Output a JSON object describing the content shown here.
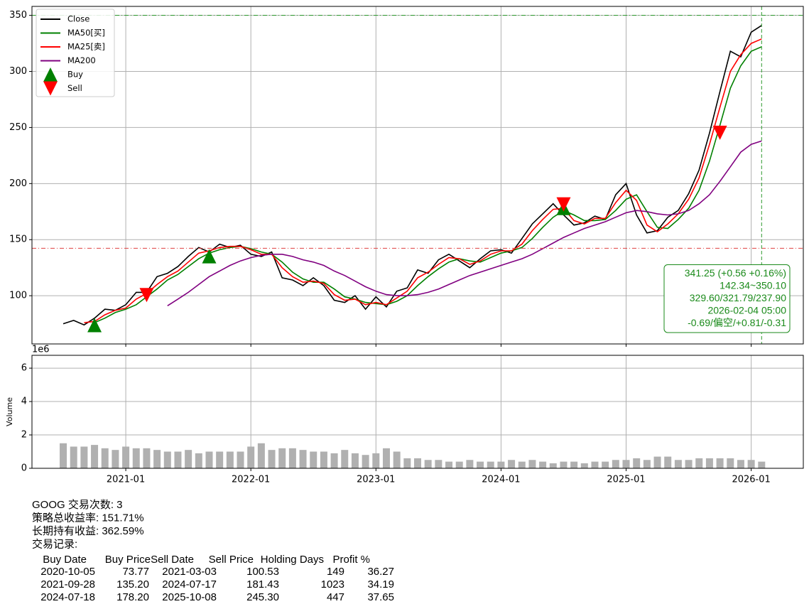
{
  "chart_data": [
    {
      "type": "line",
      "legend": "upper left",
      "grid": true,
      "x": [
        "2020-07",
        "2020-08",
        "2020-09",
        "2020-10",
        "2020-11",
        "2020-12",
        "2021-01",
        "2021-02",
        "2021-03",
        "2021-04",
        "2021-05",
        "2021-06",
        "2021-07",
        "2021-08",
        "2021-09",
        "2021-10",
        "2021-11",
        "2021-12",
        "2022-01",
        "2022-02",
        "2022-03",
        "2022-04",
        "2022-05",
        "2022-06",
        "2022-07",
        "2022-08",
        "2022-09",
        "2022-10",
        "2022-11",
        "2022-12",
        "2023-01",
        "2023-02",
        "2023-03",
        "2023-04",
        "2023-05",
        "2023-06",
        "2023-07",
        "2023-08",
        "2023-09",
        "2023-10",
        "2023-11",
        "2023-12",
        "2024-01",
        "2024-02",
        "2024-03",
        "2024-04",
        "2024-05",
        "2024-06",
        "2024-07",
        "2024-08",
        "2024-09",
        "2024-10",
        "2024-11",
        "2024-12",
        "2025-01",
        "2025-02",
        "2025-03",
        "2025-04",
        "2025-05",
        "2025-06",
        "2025-07",
        "2025-08",
        "2025-09",
        "2025-10",
        "2025-11",
        "2025-12",
        "2026-01",
        "2026-02"
      ],
      "series": [
        {
          "name": "Close",
          "color": "#000000",
          "values": [
            75,
            78,
            74,
            80,
            88,
            87,
            92,
            103,
            103,
            117,
            120,
            126,
            135,
            143,
            139,
            146,
            143,
            145,
            137,
            135,
            139,
            116,
            114,
            109,
            116,
            109,
            96,
            94,
            100,
            88,
            99,
            90,
            104,
            107,
            123,
            120,
            132,
            137,
            131,
            125,
            133,
            140,
            141,
            138,
            151,
            164,
            173,
            182,
            172,
            163,
            165,
            171,
            168,
            190,
            200,
            172,
            156,
            158,
            170,
            176,
            191,
            212,
            245,
            282,
            318,
            313,
            335,
            341
          ]
        },
        {
          "name": "MA50[买]",
          "color": "#008000",
          "values": [
            null,
            null,
            null,
            76,
            80,
            85,
            88,
            92,
            99,
            106,
            114,
            119,
            126,
            133,
            138,
            141,
            143,
            144,
            142,
            139,
            137,
            130,
            121,
            115,
            112,
            112,
            106,
            99,
            97,
            94,
            93,
            92,
            95,
            100,
            109,
            117,
            124,
            130,
            133,
            131,
            130,
            134,
            138,
            140,
            143,
            151,
            161,
            170,
            176,
            172,
            167,
            167,
            168,
            176,
            186,
            190,
            175,
            161,
            160,
            168,
            178,
            194,
            220,
            252,
            285,
            305,
            318,
            322
          ]
        },
        {
          "name": "MA25[卖]",
          "color": "#ff0000",
          "values": [
            null,
            null,
            76,
            77,
            83,
            87,
            89,
            97,
            102,
            110,
            117,
            122,
            130,
            138,
            140,
            143,
            144,
            144,
            141,
            137,
            137,
            125,
            117,
            112,
            113,
            111,
            101,
            96,
            97,
            92,
            94,
            92,
            98,
            104,
            116,
            121,
            128,
            134,
            133,
            128,
            131,
            137,
            140,
            140,
            146,
            158,
            168,
            177,
            178,
            167,
            164,
            169,
            169,
            183,
            194,
            185,
            163,
            157,
            164,
            173,
            186,
            205,
            235,
            268,
            300,
            315,
            325,
            329
          ]
        },
        {
          "name": "MA200",
          "color": "#800080",
          "values": [
            null,
            null,
            null,
            null,
            null,
            null,
            null,
            null,
            null,
            null,
            91,
            97,
            103,
            110,
            117,
            122,
            127,
            131,
            134,
            136,
            137,
            137,
            135,
            132,
            130,
            127,
            122,
            118,
            113,
            108,
            104,
            101,
            100,
            100,
            101,
            103,
            106,
            110,
            114,
            118,
            121,
            124,
            127,
            130,
            133,
            137,
            142,
            147,
            152,
            156,
            160,
            163,
            166,
            170,
            174,
            176,
            175,
            173,
            172,
            173,
            176,
            182,
            190,
            202,
            215,
            228,
            235,
            238
          ]
        }
      ],
      "markers": [
        {
          "name": "Buy",
          "color": "#008000",
          "shape": "up",
          "x": [
            "2020-10",
            "2021-09",
            "2024-07"
          ],
          "values": [
            73.77,
            135.2,
            178.2
          ]
        },
        {
          "name": "Sell",
          "color": "#ff0000",
          "shape": "down",
          "x": [
            "2021-03",
            "2024-07",
            "2025-10"
          ],
          "values": [
            100.53,
            181.43,
            245.3
          ]
        }
      ],
      "hlines": [
        {
          "value": 350.1,
          "color": "#2e9a2e"
        },
        {
          "value": 142.34,
          "color": "#e04040"
        }
      ],
      "vline": {
        "x": "2026-02",
        "color": "#2e9a2e"
      },
      "annotation": [
        "341.25 (+0.56 +0.16%)",
        "142.34~350.10",
        "329.60/321.79/237.90",
        "2026-02-04 05:00",
        "-0.69/偏空/+0.81/-0.31"
      ],
      "xlim": [
        "2020-04",
        "2026-06"
      ],
      "xticks": [
        "2021-01",
        "2022-01",
        "2023-01",
        "2024-01",
        "2025-01",
        "2026-01"
      ],
      "ylim": [
        57,
        358
      ],
      "yticks": [
        100,
        150,
        200,
        250,
        300,
        350
      ]
    },
    {
      "type": "bar",
      "grid": true,
      "y_label": "Volume",
      "offset_label": "1e6",
      "color": "#b0b0b0",
      "x": [
        "2020-07",
        "2020-08",
        "2020-09",
        "2020-10",
        "2020-11",
        "2020-12",
        "2021-01",
        "2021-02",
        "2021-03",
        "2021-04",
        "2021-05",
        "2021-06",
        "2021-07",
        "2021-08",
        "2021-09",
        "2021-10",
        "2021-11",
        "2021-12",
        "2022-01",
        "2022-02",
        "2022-03",
        "2022-04",
        "2022-05",
        "2022-06",
        "2022-07",
        "2022-08",
        "2022-09",
        "2022-10",
        "2022-11",
        "2022-12",
        "2023-01",
        "2023-02",
        "2023-03",
        "2023-04",
        "2023-05",
        "2023-06",
        "2023-07",
        "2023-08",
        "2023-09",
        "2023-10",
        "2023-11",
        "2023-12",
        "2024-01",
        "2024-02",
        "2024-03",
        "2024-04",
        "2024-05",
        "2024-06",
        "2024-07",
        "2024-08",
        "2024-09",
        "2024-10",
        "2024-11",
        "2024-12",
        "2025-01",
        "2025-02",
        "2025-03",
        "2025-04",
        "2025-05",
        "2025-06",
        "2025-07",
        "2025-08",
        "2025-09",
        "2025-10",
        "2025-11",
        "2025-12",
        "2026-01",
        "2026-02"
      ],
      "values": [
        1.5,
        1.3,
        1.3,
        1.4,
        1.2,
        1.1,
        1.3,
        1.2,
        1.2,
        1.1,
        1.0,
        1.0,
        1.1,
        0.9,
        1.0,
        1.0,
        1.0,
        1.0,
        1.3,
        1.5,
        1.1,
        1.2,
        1.2,
        1.1,
        1.0,
        1.0,
        0.9,
        1.1,
        0.9,
        0.8,
        0.9,
        1.2,
        1.0,
        0.6,
        0.6,
        0.5,
        0.5,
        0.4,
        0.4,
        0.5,
        0.4,
        0.4,
        0.4,
        0.5,
        0.4,
        0.5,
        0.4,
        0.3,
        0.4,
        0.4,
        0.3,
        0.4,
        0.4,
        0.5,
        0.5,
        0.6,
        0.5,
        0.7,
        0.7,
        0.5,
        0.5,
        0.6,
        0.6,
        0.6,
        0.6,
        0.5,
        0.5,
        0.4
      ],
      "xlim": [
        "2020-04",
        "2026-06"
      ],
      "xticks": [
        "2021-01",
        "2022-01",
        "2023-01",
        "2024-01",
        "2025-01",
        "2026-01"
      ],
      "ylim": [
        0,
        6.77
      ],
      "yticks": [
        0,
        2,
        4,
        6
      ]
    }
  ],
  "report": {
    "lines": [
      "GOOG 交易次数: 3",
      "策略总收益率: 151.71%",
      "长期持有收益: 362.59%",
      "交易记录:"
    ],
    "table": {
      "columns": [
        "Buy Date",
        "Buy Price",
        "Sell Date",
        "Sell Price",
        "Holding Days",
        "Profit %"
      ],
      "rows": [
        [
          "2020-10-05",
          "73.77",
          "2021-03-03",
          "100.53",
          "149",
          "36.27"
        ],
        [
          "2021-09-28",
          "135.20",
          "2024-07-17",
          "181.43",
          "1023",
          "34.19"
        ],
        [
          "2024-07-18",
          "178.20",
          "2025-10-08",
          "245.30",
          "447",
          "37.65"
        ]
      ]
    }
  }
}
